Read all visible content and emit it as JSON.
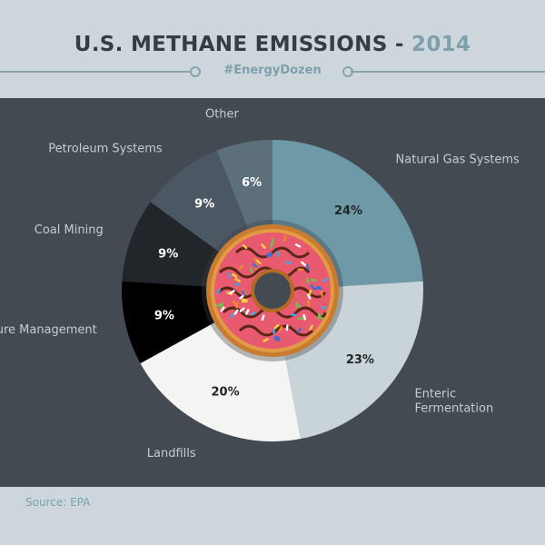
{
  "header": {
    "title": "U.S. METHANE EMISSIONS - ",
    "year": "2014",
    "hashtag": "#EnergyDozen"
  },
  "footer": {
    "source_label": "Source:",
    "source_value": "EPA"
  },
  "colors": {
    "background": "#cdd7db",
    "panel": "#434a52",
    "accent": "#7da0ac",
    "title": "#343c44"
  },
  "chart_data": {
    "type": "pie",
    "style": "donut with decorative doughnut illustration at center",
    "categories": [
      "Natural Gas Systems",
      "Enteric Fermentation",
      "Landfills",
      "Manure Management",
      "Coal Mining",
      "Petroleum Systems",
      "Other"
    ],
    "values": [
      24,
      23,
      20,
      9,
      9,
      9,
      6
    ],
    "value_labels": [
      "24%",
      "23%",
      "20%",
      "9%",
      "9%",
      "9%",
      "6%"
    ],
    "slice_colors": [
      "#6e99a6",
      "#c9d4d8",
      "#f4f4f2",
      "#000000",
      "#22262a",
      "#4b5864",
      "#5d6f7b"
    ],
    "value_label_colors": [
      "#1e2428",
      "#1e2428",
      "#1e2428",
      "#ffffff",
      "#ffffff",
      "#ffffff",
      "#ffffff"
    ],
    "start_angle_deg": 0,
    "direction": "clockwise",
    "legend": "none"
  }
}
